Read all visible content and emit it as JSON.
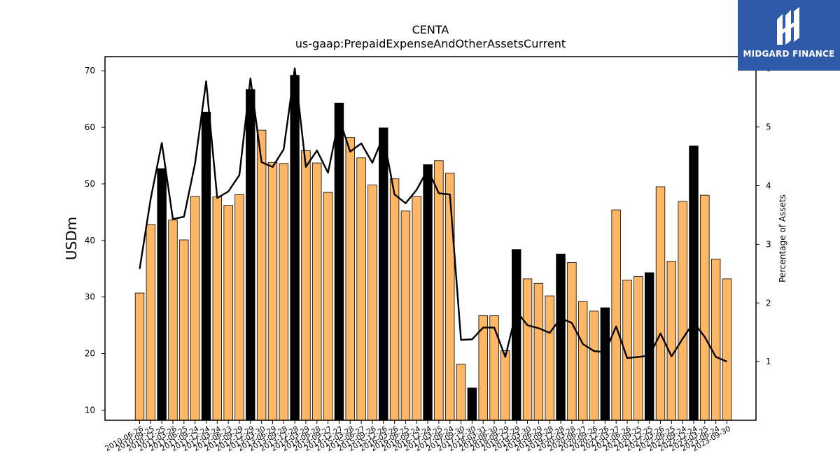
{
  "brand": {
    "name": "MIDGARD FINANCE",
    "color": "#2e5aa8",
    "logo_icon": "midgard-logo-icon"
  },
  "chart_data": {
    "type": "bar",
    "title": "CENTA",
    "subtitle": "us-gaap:PrepaidExpenseAndOtherAssetsCurrent",
    "ylabel": "USDm",
    "ylabel_right": "Percentage of Assets",
    "ylim": [
      8.2,
      72.5
    ],
    "ylim_right": [
      0,
      6.2
    ],
    "yticks": [
      10,
      20,
      30,
      40,
      50,
      60,
      70
    ],
    "yticks_right": [
      1,
      2,
      3,
      4,
      5,
      6
    ],
    "bar_color": "#ffb766",
    "highlight_color": "#000000",
    "line_color": "#000000",
    "x_tick_labels": [
      "2010-06-26",
      "2010-09-25",
      "2010-12-25",
      "2011-03-26",
      "2011-06-25",
      "2011-09-24",
      "2011-12-24",
      "2012-03-24",
      "2012-06-23",
      "2012-09-29",
      "2012-12-29",
      "2013-03-30",
      "2013-06-29",
      "2013-09-28",
      "2013-12-28",
      "2014-03-29",
      "2014-06-28",
      "2014-09-27",
      "2014-12-27",
      "2015-03-28",
      "2015-06-27",
      "2015-09-26",
      "2015-12-26",
      "2016-03-26",
      "2016-06-25",
      "2016-09-24",
      "2016-12-24",
      "2017-03-25",
      "2017-06-24",
      "2017-09-30",
      "2017-12-30",
      "2018-03-31",
      "2018-06-30",
      "2018-09-29",
      "2018-12-29",
      "2019-03-30",
      "2019-06-29",
      "2019-09-28",
      "2019-12-28",
      "2020-03-28",
      "2020-06-27",
      "2020-09-26",
      "2020-12-26",
      "2021-03-27",
      "2021-06-26",
      "2021-09-25",
      "2021-12-25",
      "2022-03-26",
      "2022-06-25",
      "2022-09-24",
      "2022-12-24",
      "2023-03-25",
      "2023-06-24",
      "2023-09-30"
    ],
    "values": [
      30.7,
      42.8,
      52.7,
      43.6,
      40.1,
      47.8,
      62.7,
      47.7,
      46.2,
      48.1,
      66.7,
      59.5,
      53.8,
      53.6,
      69.2,
      55.9,
      53.7,
      48.5,
      64.3,
      58.2,
      54.6,
      49.8,
      59.9,
      50.9,
      45.2,
      47.8,
      53.4,
      54.1,
      51.9,
      18.1,
      13.9,
      26.7,
      26.7,
      20.5,
      38.4,
      33.2,
      32.4,
      30.2,
      37.6,
      36.1,
      29.2,
      27.5,
      28.1,
      45.4,
      33.0,
      33.6,
      34.3,
      49.5,
      36.3,
      46.9,
      56.7,
      48.0,
      36.7,
      33.2
    ],
    "highlight": [
      false,
      false,
      true,
      false,
      false,
      false,
      true,
      false,
      false,
      false,
      true,
      false,
      false,
      false,
      true,
      false,
      false,
      false,
      true,
      false,
      false,
      false,
      true,
      false,
      false,
      false,
      true,
      false,
      false,
      false,
      true,
      false,
      false,
      false,
      true,
      false,
      false,
      false,
      true,
      false,
      false,
      false,
      true,
      false,
      false,
      false,
      true,
      false,
      false,
      false,
      true,
      false,
      false,
      false
    ],
    "pct_of_assets": [
      2.58,
      3.78,
      4.73,
      3.43,
      3.47,
      4.38,
      5.78,
      3.79,
      3.9,
      4.18,
      5.83,
      4.4,
      4.32,
      4.62,
      6.0,
      4.32,
      4.6,
      4.22,
      5.15,
      4.58,
      4.72,
      4.39,
      4.85,
      3.85,
      3.7,
      3.93,
      4.28,
      3.87,
      3.85,
      1.37,
      1.38,
      1.58,
      1.58,
      1.08,
      1.86,
      1.62,
      1.57,
      1.49,
      1.74,
      1.66,
      1.3,
      1.18,
      1.16,
      1.6,
      1.06,
      1.08,
      1.1,
      1.48,
      1.09,
      1.39,
      1.67,
      1.42,
      1.08,
      1.0
    ],
    "grid": false
  }
}
